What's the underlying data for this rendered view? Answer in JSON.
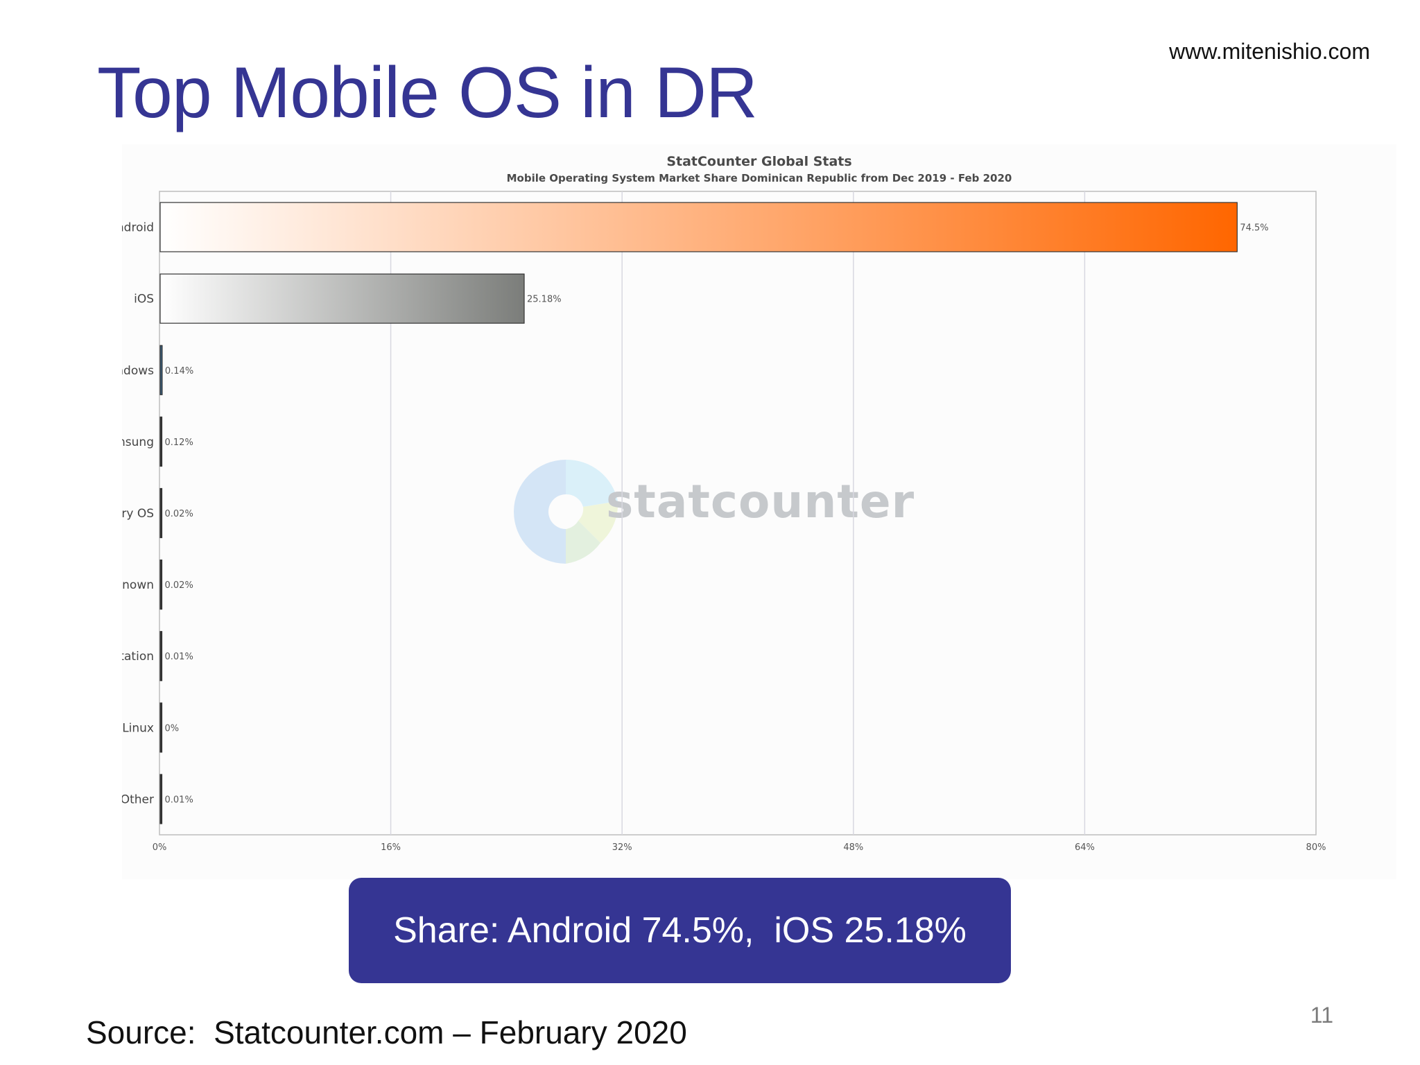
{
  "slide": {
    "url": "www.mitenishio.com",
    "title": "Top Mobile OS in DR",
    "callout": "Share: Android 74.5%,  iOS 25.18%",
    "source": "Source:  Statcounter.com – February 2020",
    "page_number": "11",
    "watermark_text": "statcounter"
  },
  "chart_data": {
    "type": "bar",
    "orientation": "horizontal",
    "title": "StatCounter Global Stats",
    "subtitle": "Mobile Operating System Market Share Dominican Republic from Dec 2019 - Feb 2020",
    "categories": [
      "Android",
      "iOS",
      "Windows",
      "Samsung",
      "BlackBerry OS",
      "Unknown",
      "Playstation",
      "Linux",
      "Other"
    ],
    "values": [
      74.5,
      25.18,
      0.14,
      0.12,
      0.02,
      0.02,
      0.01,
      0,
      0.01
    ],
    "value_labels": [
      "74.5%",
      "25.18%",
      "0.14%",
      "0.12%",
      "0.02%",
      "0.02%",
      "0.01%",
      "0%",
      "0.01%"
    ],
    "x_ticks": [
      "0%",
      "16%",
      "32%",
      "48%",
      "64%",
      "80%"
    ],
    "xlim": [
      0,
      80
    ],
    "grid": true,
    "colors": {
      "android_start": "#ffffff",
      "android_end": "#ff6600",
      "ios_start": "#ffffff",
      "ios_end": "#7b7d7a",
      "windows": "#3a5f7d",
      "other": "#333333",
      "grid": "#d8d8e0",
      "axis": "#bdbdbd"
    }
  }
}
